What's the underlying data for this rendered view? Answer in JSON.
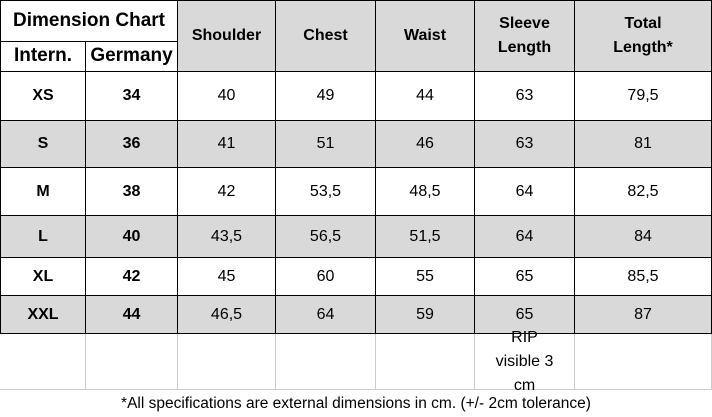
{
  "header": {
    "title": "Dimension Chart",
    "sub": [
      "Intern.",
      "Germany"
    ],
    "columns": [
      "Shoulder",
      "Chest",
      "Waist",
      "Sleeve Length",
      "Total Length*"
    ]
  },
  "table": {
    "rows": [
      [
        "XS",
        "34",
        "40",
        "49",
        "44",
        "63",
        "79,5"
      ],
      [
        "S",
        "36",
        "41",
        "51",
        "46",
        "63",
        "81"
      ],
      [
        "M",
        "38",
        "42",
        "53,5",
        "48,5",
        "64",
        "82,5"
      ],
      [
        "L",
        "40",
        "43,5",
        "56,5",
        "51,5",
        "64",
        "84"
      ],
      [
        "XL",
        "42",
        "45",
        "60",
        "55",
        "65",
        "85,5"
      ],
      [
        "XXL",
        "44",
        "46,5",
        "64",
        "59",
        "65",
        "87"
      ]
    ]
  },
  "note": "RIP visible 3 cm",
  "footer": "*All specifications are external dimensions in cm. (+/- 2cm tolerance)"
}
